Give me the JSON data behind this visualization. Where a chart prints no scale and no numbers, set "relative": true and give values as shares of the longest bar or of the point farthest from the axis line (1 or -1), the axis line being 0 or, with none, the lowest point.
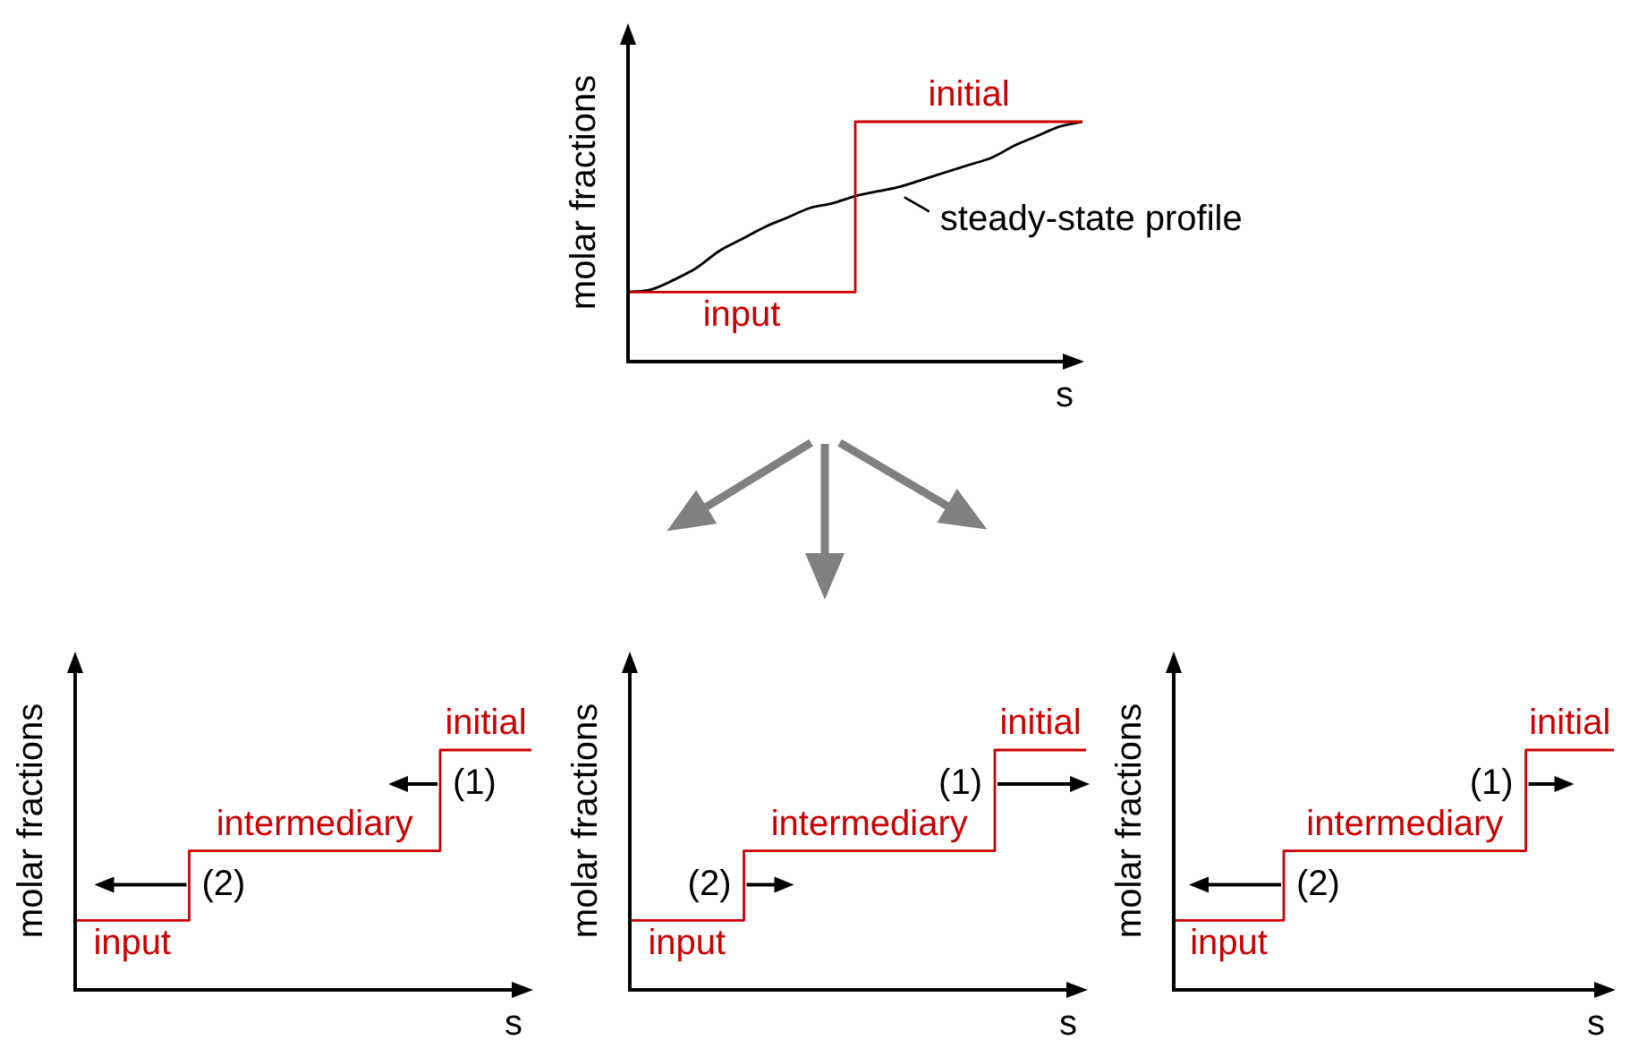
{
  "chart_data": [
    {
      "type": "step",
      "xlabel": "s",
      "ylabel": "molar fractions",
      "relative": true,
      "categories": [
        null,
        null,
        null,
        null,
        null,
        null,
        null,
        null,
        null,
        null,
        null,
        null,
        null,
        null,
        null,
        null,
        null,
        null,
        null,
        null,
        null
      ],
      "series": [
        {
          "color": "#cc0000",
          "values": [
            0.29,
            0.29,
            0.29,
            0.29,
            0.29,
            0.29,
            0.29,
            0.29,
            0.29,
            0.29,
            1,
            1,
            1,
            1,
            1,
            1,
            1,
            1,
            1,
            1,
            1
          ]
        },
        {
          "type": "line",
          "name": "steady-state profile",
          "color": "#000000",
          "values": [
            0.29,
            0.3,
            0.34,
            0.39,
            0.46,
            0.51,
            0.56,
            0.6,
            0.64,
            0.66,
            0.69,
            0.71,
            0.73,
            0.76,
            0.79,
            0.82,
            0.85,
            0.9,
            0.94,
            0.98,
            1
          ]
        }
      ],
      "annotations": [
        {
          "text": "initial",
          "y": 1
        },
        {
          "text": "input",
          "y": 0.29
        }
      ]
    },
    {
      "type": "step",
      "xlabel": "s",
      "ylabel": "molar fractions",
      "relative": true,
      "categories": [
        null,
        null,
        null,
        null,
        null,
        null,
        null,
        null,
        null,
        null,
        null,
        null,
        null,
        null,
        null,
        null,
        null,
        null,
        null,
        null,
        null
      ],
      "series": [
        {
          "color": "#cc0000",
          "values": [
            0.29,
            0.29,
            0.29,
            0.29,
            0.29,
            0.58,
            0.58,
            0.58,
            0.58,
            0.58,
            0.58,
            0.58,
            0.58,
            0.58,
            0.58,
            0.58,
            1,
            1,
            1,
            1,
            1
          ]
        }
      ],
      "annotations": [
        {
          "text": "initial",
          "y": 1
        },
        {
          "text": "intermediary",
          "y": 0.58
        },
        {
          "text": "input",
          "y": 0.29
        },
        "(1)",
        "(2)"
      ]
    },
    {
      "type": "step",
      "xlabel": "s",
      "ylabel": "molar fractions",
      "relative": true,
      "categories": [
        null,
        null,
        null,
        null,
        null,
        null,
        null,
        null,
        null,
        null,
        null,
        null,
        null,
        null,
        null,
        null,
        null,
        null,
        null,
        null,
        null
      ],
      "series": [
        {
          "color": "#cc0000",
          "values": [
            0.29,
            0.29,
            0.29,
            0.29,
            0.29,
            0.58,
            0.58,
            0.58,
            0.58,
            0.58,
            0.58,
            0.58,
            0.58,
            0.58,
            0.58,
            0.58,
            1,
            1,
            1,
            1,
            1
          ]
        }
      ],
      "annotations": [
        {
          "text": "initial",
          "y": 1
        },
        {
          "text": "intermediary",
          "y": 0.58
        },
        {
          "text": "input",
          "y": 0.29
        },
        "(1)",
        "(2)"
      ]
    },
    {
      "type": "step",
      "xlabel": "s",
      "ylabel": "molar fractions",
      "relative": true,
      "categories": [
        null,
        null,
        null,
        null,
        null,
        null,
        null,
        null,
        null,
        null,
        null,
        null,
        null,
        null,
        null,
        null,
        null,
        null,
        null,
        null,
        null
      ],
      "series": [
        {
          "color": "#cc0000",
          "values": [
            0.29,
            0.29,
            0.29,
            0.29,
            0.29,
            0.58,
            0.58,
            0.58,
            0.58,
            0.58,
            0.58,
            0.58,
            0.58,
            0.58,
            0.58,
            0.58,
            1,
            1,
            1,
            1,
            1
          ]
        }
      ],
      "annotations": [
        {
          "text": "initial",
          "y": 1
        },
        {
          "text": "intermediary",
          "y": 0.58
        },
        {
          "text": "input",
          "y": 0.29
        },
        "(1)",
        "(2)"
      ]
    }
  ]
}
